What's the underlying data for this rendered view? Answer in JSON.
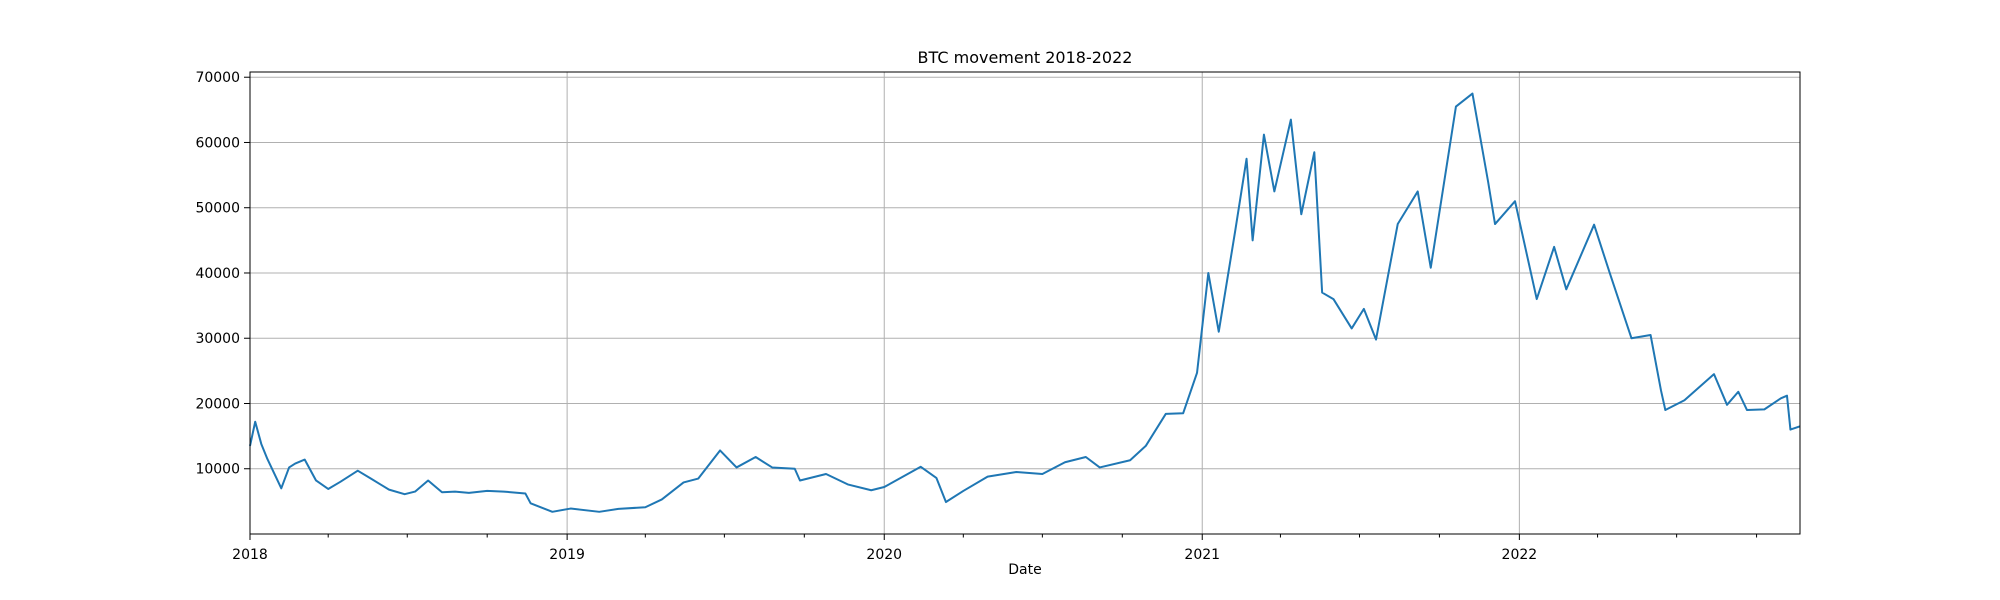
{
  "chart_data": {
    "type": "line",
    "title": "BTC movement 2018-2022",
    "xlabel": "Date",
    "ylabel": "",
    "xlim": [
      "2018-01-01",
      "2022-11-20"
    ],
    "ylim": [
      0,
      70800
    ],
    "grid": true,
    "x_ticks": [
      {
        "date": "2018-01-01",
        "label": "2018"
      },
      {
        "date": "2019-01-01",
        "label": "2019"
      },
      {
        "date": "2020-01-01",
        "label": "2020"
      },
      {
        "date": "2021-01-01",
        "label": "2021"
      },
      {
        "date": "2022-01-01",
        "label": "2022"
      }
    ],
    "y_ticks": [
      {
        "value": 10000,
        "label": "10000"
      },
      {
        "value": 20000,
        "label": "20000"
      },
      {
        "value": 30000,
        "label": "30000"
      },
      {
        "value": 40000,
        "label": "40000"
      },
      {
        "value": 50000,
        "label": "50000"
      },
      {
        "value": 60000,
        "label": "60000"
      },
      {
        "value": 70000,
        "label": "70000"
      }
    ],
    "series": [
      {
        "name": "",
        "color": "#1f77b4",
        "points": [
          [
            "2018-01-01",
            13500
          ],
          [
            "2018-01-07",
            17200
          ],
          [
            "2018-01-14",
            13800
          ],
          [
            "2018-01-21",
            11500
          ],
          [
            "2018-02-06",
            7000
          ],
          [
            "2018-02-15",
            10200
          ],
          [
            "2018-02-22",
            10800
          ],
          [
            "2018-03-05",
            11400
          ],
          [
            "2018-03-18",
            8200
          ],
          [
            "2018-04-01",
            6900
          ],
          [
            "2018-04-15",
            8000
          ],
          [
            "2018-05-05",
            9700
          ],
          [
            "2018-05-20",
            8500
          ],
          [
            "2018-06-10",
            6800
          ],
          [
            "2018-06-28",
            6100
          ],
          [
            "2018-07-10",
            6500
          ],
          [
            "2018-07-25",
            8200
          ],
          [
            "2018-08-10",
            6400
          ],
          [
            "2018-08-25",
            6500
          ],
          [
            "2018-09-10",
            6300
          ],
          [
            "2018-10-01",
            6600
          ],
          [
            "2018-10-20",
            6500
          ],
          [
            "2018-11-14",
            6200
          ],
          [
            "2018-11-20",
            4700
          ],
          [
            "2018-12-15",
            3400
          ],
          [
            "2019-01-05",
            3900
          ],
          [
            "2019-02-07",
            3400
          ],
          [
            "2019-03-01",
            3850
          ],
          [
            "2019-04-01",
            4100
          ],
          [
            "2019-04-20",
            5300
          ],
          [
            "2019-05-15",
            7900
          ],
          [
            "2019-06-01",
            8500
          ],
          [
            "2019-06-26",
            12800
          ],
          [
            "2019-07-15",
            10200
          ],
          [
            "2019-08-06",
            11800
          ],
          [
            "2019-08-25",
            10200
          ],
          [
            "2019-09-20",
            10000
          ],
          [
            "2019-09-26",
            8200
          ],
          [
            "2019-10-26",
            9200
          ],
          [
            "2019-11-20",
            7600
          ],
          [
            "2019-12-17",
            6700
          ],
          [
            "2020-01-01",
            7200
          ],
          [
            "2020-02-12",
            10300
          ],
          [
            "2020-03-01",
            8600
          ],
          [
            "2020-03-12",
            4900
          ],
          [
            "2020-04-01",
            6600
          ],
          [
            "2020-04-29",
            8800
          ],
          [
            "2020-06-01",
            9500
          ],
          [
            "2020-07-01",
            9200
          ],
          [
            "2020-07-27",
            11000
          ],
          [
            "2020-08-20",
            11800
          ],
          [
            "2020-09-05",
            10200
          ],
          [
            "2020-10-10",
            11300
          ],
          [
            "2020-10-28",
            13500
          ],
          [
            "2020-11-20",
            18400
          ],
          [
            "2020-12-10",
            18500
          ],
          [
            "2020-12-26",
            24700
          ],
          [
            "2021-01-08",
            40000
          ],
          [
            "2021-01-20",
            31000
          ],
          [
            "2021-02-08",
            46500
          ],
          [
            "2021-02-21",
            57500
          ],
          [
            "2021-02-28",
            45000
          ],
          [
            "2021-03-13",
            61200
          ],
          [
            "2021-03-25",
            52500
          ],
          [
            "2021-04-13",
            63500
          ],
          [
            "2021-04-25",
            49000
          ],
          [
            "2021-05-10",
            58500
          ],
          [
            "2021-05-19",
            37000
          ],
          [
            "2021-06-01",
            36000
          ],
          [
            "2021-06-22",
            31500
          ],
          [
            "2021-07-06",
            34500
          ],
          [
            "2021-07-20",
            29800
          ],
          [
            "2021-08-14",
            47500
          ],
          [
            "2021-09-06",
            52500
          ],
          [
            "2021-09-21",
            40800
          ],
          [
            "2021-10-20",
            65500
          ],
          [
            "2021-11-08",
            67500
          ],
          [
            "2021-11-26",
            54000
          ],
          [
            "2021-12-04",
            47500
          ],
          [
            "2021-12-27",
            51000
          ],
          [
            "2022-01-21",
            36000
          ],
          [
            "2022-02-10",
            44000
          ],
          [
            "2022-02-24",
            37500
          ],
          [
            "2022-03-28",
            47400
          ],
          [
            "2022-04-15",
            40000
          ],
          [
            "2022-05-10",
            30000
          ],
          [
            "2022-06-01",
            30500
          ],
          [
            "2022-06-13",
            22000
          ],
          [
            "2022-06-18",
            19000
          ],
          [
            "2022-07-10",
            20500
          ],
          [
            "2022-08-13",
            24500
          ],
          [
            "2022-08-28",
            19800
          ],
          [
            "2022-09-10",
            21800
          ],
          [
            "2022-09-20",
            19000
          ],
          [
            "2022-10-10",
            19100
          ],
          [
            "2022-10-29",
            20800
          ],
          [
            "2022-11-05",
            21200
          ],
          [
            "2022-11-09",
            16000
          ],
          [
            "2022-11-20",
            16500
          ]
        ]
      }
    ]
  }
}
